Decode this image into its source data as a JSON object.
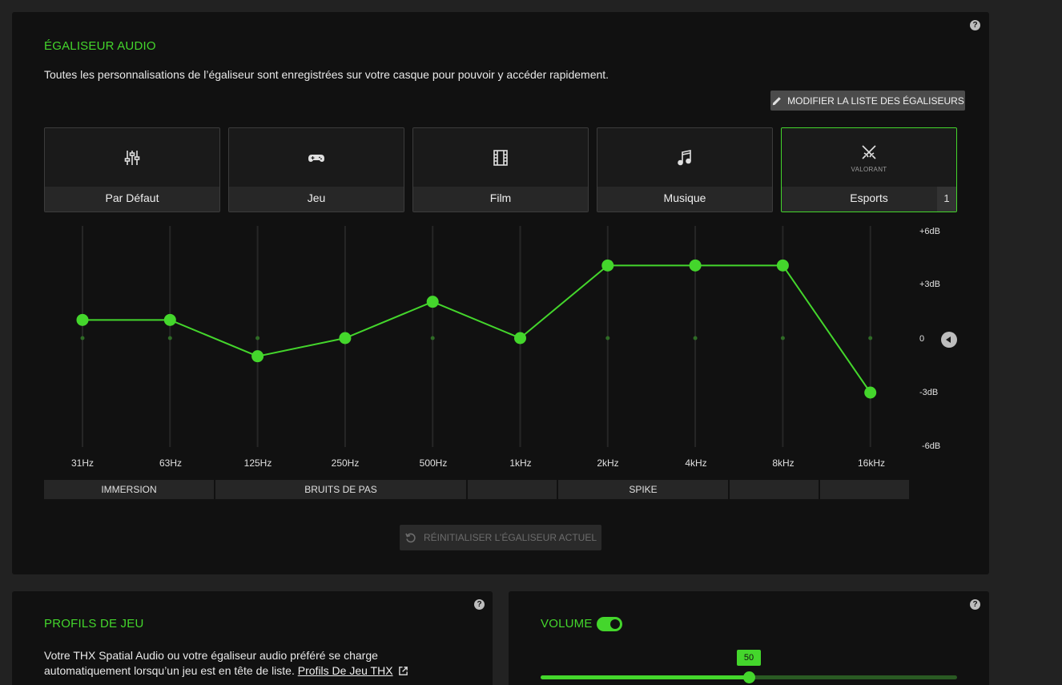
{
  "equalizer": {
    "title": "ÉGALISEUR AUDIO",
    "description": "Toutes les personnalisations de l’égaliseur sont enregistrées sur votre casque pour pouvoir y accéder rapidement.",
    "edit_list_label": "MODIFIER LA LISTE DES ÉGALISEURS",
    "help": "?",
    "presets": [
      {
        "label": "Par Défaut",
        "icon": "sliders-icon"
      },
      {
        "label": "Jeu",
        "icon": "gamepad-icon"
      },
      {
        "label": "Film",
        "icon": "film-icon"
      },
      {
        "label": "Musique",
        "icon": "music-note-icon"
      },
      {
        "label": "Esports",
        "icon": "crossed-swords-icon",
        "sub": "VALORANT",
        "badge": "1",
        "active": true
      }
    ],
    "db_labels": [
      "+6dB",
      "+3dB",
      "0",
      "-3dB",
      "-6dB"
    ],
    "bands": [
      {
        "freq": "31Hz",
        "gain_db": 1
      },
      {
        "freq": "63Hz",
        "gain_db": 1
      },
      {
        "freq": "125Hz",
        "gain_db": -1
      },
      {
        "freq": "250Hz",
        "gain_db": 0
      },
      {
        "freq": "500Hz",
        "gain_db": 2
      },
      {
        "freq": "1kHz",
        "gain_db": 0
      },
      {
        "freq": "2kHz",
        "gain_db": 4
      },
      {
        "freq": "4kHz",
        "gain_db": 4
      },
      {
        "freq": "8kHz",
        "gain_db": 4
      },
      {
        "freq": "16kHz",
        "gain_db": -3
      }
    ],
    "gain_range_db": [
      -6,
      6
    ],
    "ranges": [
      "IMMERSION",
      "BRUITS DE PAS",
      "",
      "SPIKE",
      "",
      ""
    ],
    "reset_label": "RÉINITIALISER L’ÉGALISEUR ACTUEL",
    "accent_color": "#44d62c"
  },
  "game_profiles": {
    "title": "PROFILS DE JEU",
    "help": "?",
    "text_line1": "Votre THX Spatial Audio ou votre égaliseur audio préféré se charge",
    "text_line2": "automatiquement lorsqu’un jeu est en tête de liste.",
    "link_label": "Profils De Jeu THX"
  },
  "volume": {
    "title": "VOLUME",
    "help": "?",
    "enabled": true,
    "value": 50,
    "value_label": "50",
    "max": 100
  }
}
